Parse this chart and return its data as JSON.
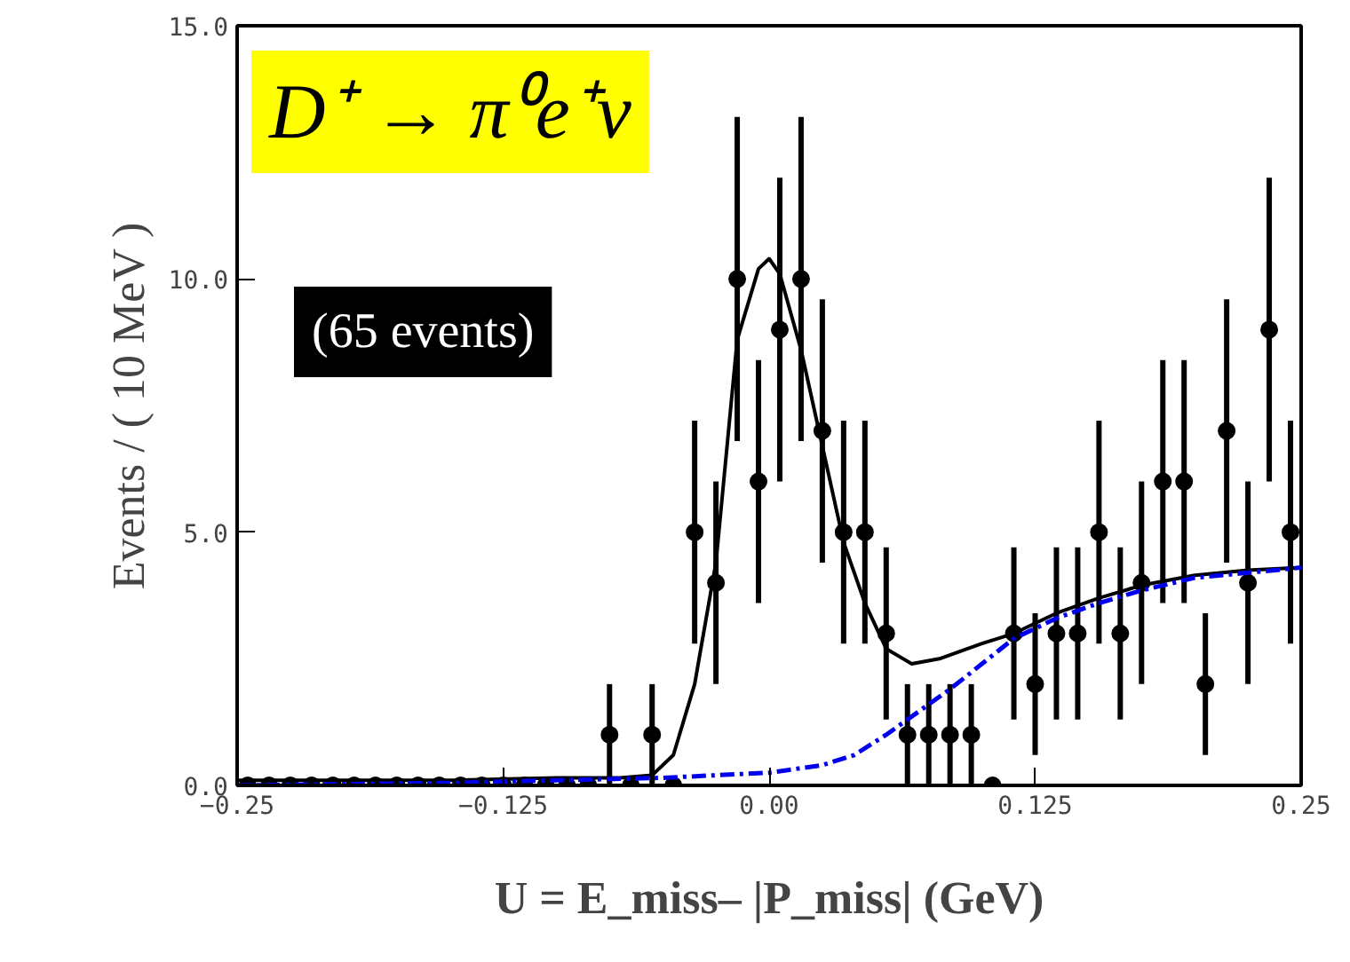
{
  "chart_data": {
    "type": "scatter",
    "xlabel": "U = E_miss– |P_miss| (GeV)",
    "ylabel": "Events / ( 10 MeV )",
    "annotations": [
      "D⁺ → π⁰e⁺ν",
      "(65 events)"
    ],
    "xlim": [
      -0.25,
      0.25
    ],
    "ylim": [
      0,
      15
    ],
    "xticks": [
      {
        "value": -0.25,
        "label": "−0.25"
      },
      {
        "value": -0.125,
        "label": "−0.125"
      },
      {
        "value": 0,
        "label": "0.00"
      },
      {
        "value": 0.125,
        "label": "0.125"
      },
      {
        "value": 0.25,
        "label": "0.25"
      }
    ],
    "yticks": [
      {
        "value": 0,
        "label": "0.0"
      },
      {
        "value": 5,
        "label": "5.0"
      },
      {
        "value": 10,
        "label": "10.0"
      },
      {
        "value": 15,
        "label": "15.0"
      }
    ],
    "grid": false,
    "series": [
      {
        "marker": "circle",
        "color": "#000000",
        "x": [
          -0.245,
          -0.235,
          -0.225,
          -0.215,
          -0.205,
          -0.195,
          -0.185,
          -0.175,
          -0.165,
          -0.155,
          -0.145,
          -0.135,
          -0.125,
          -0.115,
          -0.105,
          -0.095,
          -0.085,
          -0.075,
          -0.065,
          -0.055,
          -0.045,
          -0.035,
          -0.025,
          -0.015,
          -0.005,
          0.005,
          0.015,
          0.025,
          0.035,
          0.045,
          0.055,
          0.065,
          0.075,
          0.085,
          0.095,
          0.105,
          0.115,
          0.125,
          0.135,
          0.145,
          0.155,
          0.165,
          0.175,
          0.185,
          0.195,
          0.205,
          0.215,
          0.225,
          0.235,
          0.245
        ],
        "values": [
          0,
          0,
          0,
          0,
          0,
          0,
          0,
          0,
          0,
          0,
          0,
          0,
          0,
          0,
          0,
          0,
          0,
          1,
          0,
          1,
          0,
          5,
          4,
          10,
          6,
          9,
          10,
          7,
          5,
          5,
          3,
          1,
          1,
          1,
          1,
          0,
          3,
          2,
          3,
          3,
          5,
          3,
          4,
          6,
          6,
          2,
          7,
          4,
          9,
          5
        ],
        "errors": [
          null,
          null,
          null,
          null,
          null,
          null,
          null,
          null,
          null,
          null,
          null,
          null,
          null,
          null,
          null,
          null,
          null,
          1,
          null,
          1,
          null,
          2.2,
          2,
          3.2,
          2.4,
          3,
          3.2,
          2.6,
          2.2,
          2.2,
          1.7,
          1,
          1,
          1,
          1,
          null,
          1.7,
          1.4,
          1.7,
          1.7,
          2.2,
          1.7,
          2,
          2.4,
          2.4,
          1.4,
          2.6,
          2,
          3,
          2.2
        ]
      },
      {
        "type": "line",
        "line_style": "solid",
        "color": "#000000",
        "x": [
          -0.25,
          -0.15,
          -0.1,
          -0.07,
          -0.055,
          -0.045,
          -0.035,
          -0.025,
          -0.015,
          -0.005,
          0.0,
          0.005,
          0.015,
          0.025,
          0.035,
          0.045,
          0.055,
          0.067,
          0.08,
          0.1,
          0.115,
          0.135,
          0.155,
          0.175,
          0.2,
          0.225,
          0.25
        ],
        "values": [
          0.1,
          0.1,
          0.15,
          0.15,
          0.2,
          0.6,
          2.0,
          4.4,
          8.8,
          10.2,
          10.4,
          10.1,
          8.6,
          6.7,
          4.8,
          3.6,
          2.7,
          2.4,
          2.5,
          2.8,
          3.0,
          3.4,
          3.7,
          3.95,
          4.15,
          4.25,
          4.3
        ]
      },
      {
        "type": "line",
        "line_style": "dashed",
        "color": "#0000ee",
        "x": [
          -0.25,
          -0.15,
          -0.1,
          -0.05,
          0.0,
          0.025,
          0.04,
          0.055,
          0.065,
          0.075,
          0.085,
          0.1,
          0.115,
          0.135,
          0.155,
          0.175,
          0.2,
          0.225,
          0.25
        ],
        "values": [
          0.0,
          0.05,
          0.1,
          0.15,
          0.25,
          0.4,
          0.6,
          1.0,
          1.3,
          1.6,
          1.9,
          2.4,
          2.9,
          3.3,
          3.6,
          3.85,
          4.1,
          4.2,
          4.3
        ]
      }
    ]
  }
}
